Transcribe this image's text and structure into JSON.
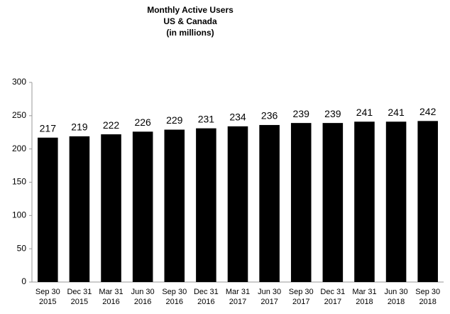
{
  "chart_data": {
    "type": "bar",
    "title": "Monthly Active Users",
    "subtitle": "US & Canada",
    "y_label": "(in millions)",
    "categories": [
      "Sep 30\n2015",
      "Dec 31\n2015",
      "Mar 31\n2016",
      "Jun 30\n2016",
      "Sep 30\n2016",
      "Dec 31\n2016",
      "Mar 31\n2017",
      "Jun 30\n2017",
      "Sep 30\n2017",
      "Dec 31\n2017",
      "Mar 31\n2018",
      "Jun 30\n2018",
      "Sep 30\n2018"
    ],
    "values": [
      217,
      219,
      222,
      226,
      229,
      231,
      234,
      236,
      239,
      239,
      241,
      241,
      242
    ],
    "color": "#000000",
    "ylim": [
      0,
      300
    ],
    "yticks": [
      0,
      50,
      100,
      150,
      200,
      250,
      300
    ],
    "grid": false
  }
}
